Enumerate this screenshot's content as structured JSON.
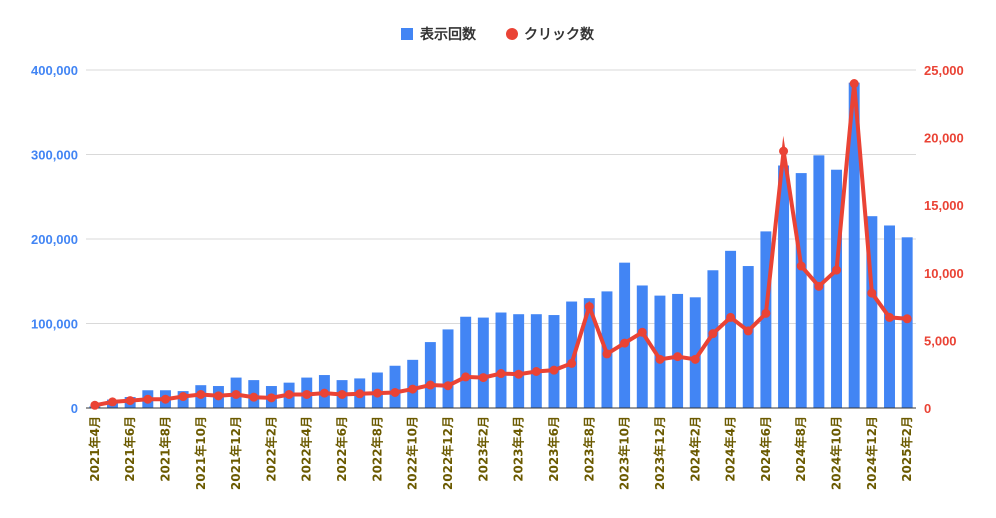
{
  "chart_data": {
    "type": "bar",
    "legend_position": "top-center",
    "grid": true,
    "colors": {
      "bars": "#4285f4",
      "line": "#ea4335",
      "grid": "#d9d9d9",
      "xtick": "#6b5a00"
    },
    "categories": [
      "2021年4月",
      "2021年5月",
      "2021年6月",
      "2021年7月",
      "2021年8月",
      "2021年9月",
      "2021年10月",
      "2021年11月",
      "2021年12月",
      "2022年1月",
      "2022年2月",
      "2022年3月",
      "2022年4月",
      "2022年5月",
      "2022年6月",
      "2022年7月",
      "2022年8月",
      "2022年9月",
      "2022年10月",
      "2022年11月",
      "2022年12月",
      "2023年1月",
      "2023年2月",
      "2023年3月",
      "2023年4月",
      "2023年5月",
      "2023年6月",
      "2023年7月",
      "2023年8月",
      "2023年9月",
      "2023年10月",
      "2023年11月",
      "2023年12月",
      "2024年1月",
      "2024年2月",
      "2024年3月",
      "2024年4月",
      "2024年5月",
      "2024年6月",
      "2024年7月",
      "2024年8月",
      "2024年9月",
      "2024年10月",
      "2024年11月",
      "2024年12月",
      "2025年1月",
      "2025年2月"
    ],
    "x_tick_labels": [
      "2021年4月",
      "2021年6月",
      "2021年8月",
      "2021年10月",
      "2021年12月",
      "2022年2月",
      "2022年4月",
      "2022年6月",
      "2022年8月",
      "2022年10月",
      "2022年12月",
      "2023年2月",
      "2023年4月",
      "2023年6月",
      "2023年8月",
      "2023年10月",
      "2023年12月",
      "2024年2月",
      "2024年4月",
      "2024年6月",
      "2024年8月",
      "2024年10月",
      "2024年12月",
      "2025年2月"
    ],
    "series": [
      {
        "name": "表示回数",
        "type": "bar",
        "axis": "left",
        "values": [
          2000,
          10000,
          13000,
          21000,
          21000,
          20000,
          27000,
          26000,
          36000,
          33000,
          26000,
          30000,
          36000,
          39000,
          33000,
          35000,
          42000,
          50000,
          57000,
          78000,
          93000,
          108000,
          107000,
          113000,
          111000,
          111000,
          110000,
          126000,
          130000,
          138000,
          172000,
          145000,
          133000,
          135000,
          131000,
          163000,
          186000,
          168000,
          209000,
          287000,
          278000,
          299000,
          282000,
          385000,
          227000,
          216000,
          202000
        ]
      },
      {
        "name": "クリック数",
        "type": "line",
        "axis": "right",
        "values": [
          200,
          450,
          550,
          650,
          650,
          850,
          1000,
          900,
          1000,
          800,
          750,
          1000,
          1000,
          1100,
          1000,
          1050,
          1100,
          1150,
          1400,
          1700,
          1650,
          2300,
          2250,
          2550,
          2500,
          2700,
          2800,
          3300,
          7500,
          4000,
          4800,
          5600,
          3600,
          3800,
          3600,
          5500,
          6700,
          5700,
          7000,
          19000,
          10500,
          9000,
          10200,
          24000,
          8500,
          6700,
          6600
        ]
      }
    ],
    "y_left": {
      "lim": [
        0,
        400000
      ],
      "ticks": [
        "0",
        "100,000",
        "200,000",
        "300,000",
        "400,000"
      ]
    },
    "y_right": {
      "lim": [
        0,
        25000
      ],
      "ticks": [
        "0",
        "5,000",
        "10,000",
        "15,000",
        "20,000",
        "25,000"
      ]
    }
  }
}
